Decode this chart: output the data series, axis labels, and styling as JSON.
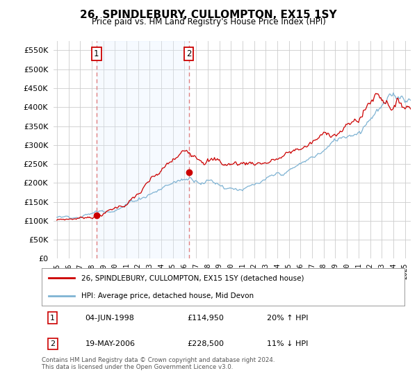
{
  "title": "26, SPINDLEBURY, CULLOMPTON, EX15 1SY",
  "subtitle": "Price paid vs. HM Land Registry's House Price Index (HPI)",
  "ytick_values": [
    0,
    50000,
    100000,
    150000,
    200000,
    250000,
    300000,
    350000,
    400000,
    450000,
    500000,
    550000
  ],
  "ylim": [
    0,
    575000
  ],
  "xlim_start": 1994.7,
  "xlim_end": 2025.5,
  "sale1_x": 1998.42,
  "sale1_y": 114950,
  "sale1_label": "1",
  "sale2_x": 2006.38,
  "sale2_y": 228500,
  "sale2_label": "2",
  "legend_red_label": "26, SPINDLEBURY, CULLOMPTON, EX15 1SY (detached house)",
  "legend_blue_label": "HPI: Average price, detached house, Mid Devon",
  "annotation1_date": "04-JUN-1998",
  "annotation1_price": "£114,950",
  "annotation1_hpi": "20% ↑ HPI",
  "annotation2_date": "19-MAY-2006",
  "annotation2_price": "£228,500",
  "annotation2_hpi": "11% ↓ HPI",
  "footnote": "Contains HM Land Registry data © Crown copyright and database right 2024.\nThis data is licensed under the Open Government Licence v3.0.",
  "color_red": "#cc0000",
  "color_blue": "#7fb3d3",
  "color_shade": "#ddeeff",
  "color_dashed": "#e08080",
  "background_color": "#ffffff",
  "grid_color": "#cccccc"
}
